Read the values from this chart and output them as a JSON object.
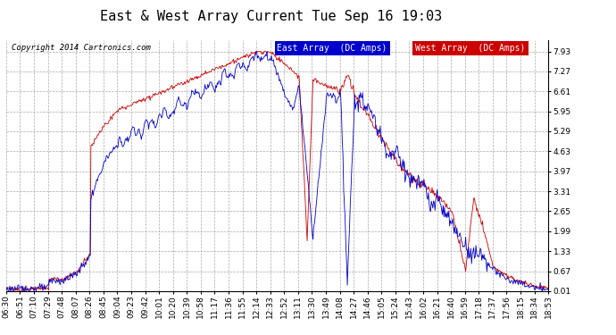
{
  "title": "East & West Array Current Tue Sep 16 19:03",
  "copyright": "Copyright 2014 Cartronics.com",
  "legend_east": "East Array  (DC Amps)",
  "legend_west": "West Array  (DC Amps)",
  "east_color": "#0000cc",
  "west_color": "#cc0000",
  "legend_east_bg": "#0000cc",
  "legend_west_bg": "#cc0000",
  "yticks": [
    0.01,
    0.67,
    1.33,
    1.99,
    2.65,
    3.31,
    3.97,
    4.63,
    5.29,
    5.95,
    6.61,
    7.27,
    7.93
  ],
  "ylim": [
    0.0,
    8.3
  ],
  "background_color": "#ffffff",
  "plot_bg_color": "#ffffff",
  "grid_color": "#aaaaaa",
  "title_fontsize": 11,
  "tick_fontsize": 6.5
}
